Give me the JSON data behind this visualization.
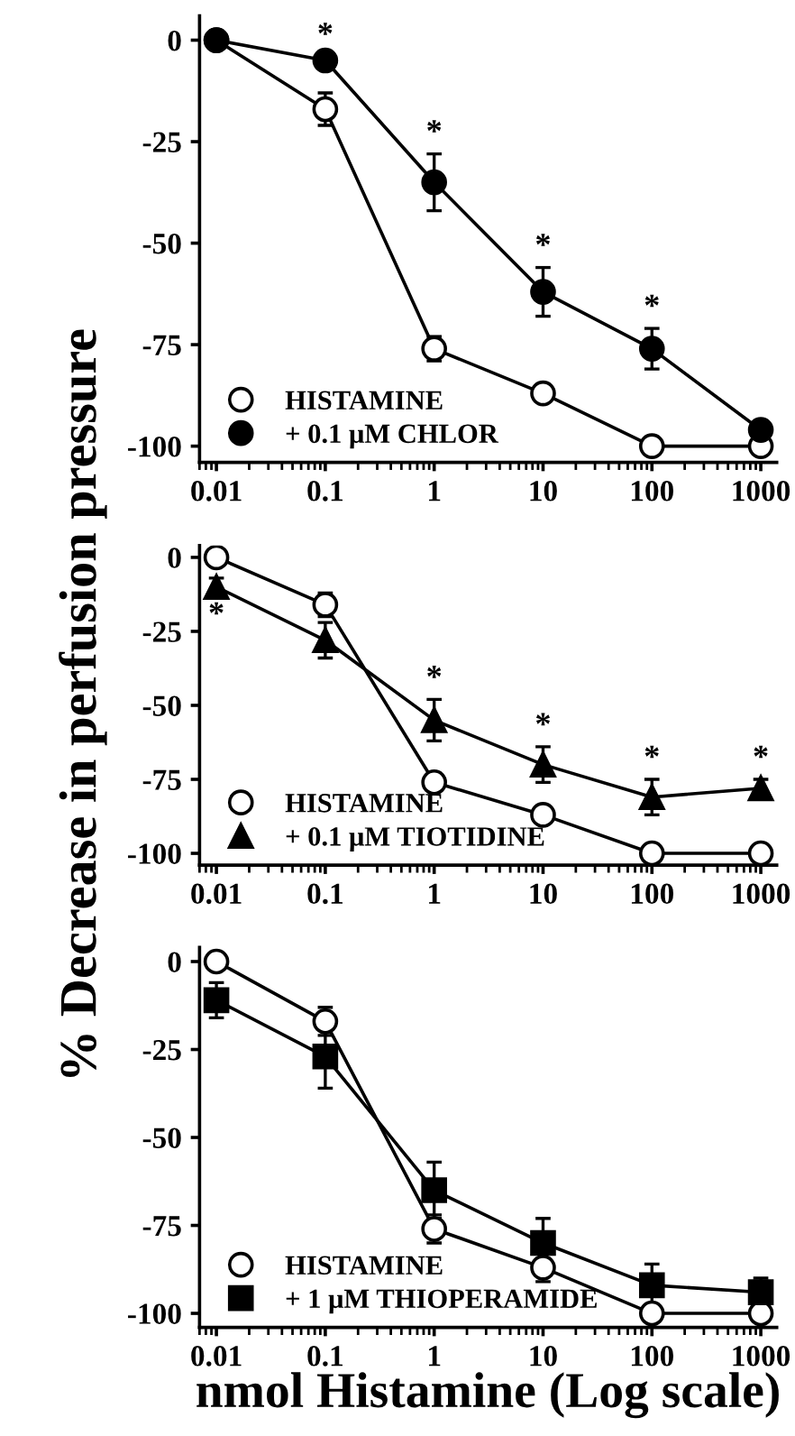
{
  "chart_data": [
    {
      "type": "line",
      "x": [
        0.01,
        0.1,
        1,
        10,
        100,
        1000
      ],
      "log": "x",
      "xlim": [
        0.007,
        1400
      ],
      "xticks": [
        0.01,
        0.1,
        1,
        10,
        100,
        1000
      ],
      "ylim": [
        -104,
        6
      ],
      "yticks": [
        0,
        -25,
        -50,
        -75,
        -100
      ],
      "grid": false,
      "legend": "bottom left",
      "line_style": "solid",
      "series": [
        {
          "name": "HISTAMINE",
          "color": "#ffffff",
          "marker": "circle",
          "values": [
            0,
            -17,
            -76,
            -87,
            -100,
            -100
          ],
          "errors": [
            null,
            4,
            3,
            null,
            null,
            null
          ]
        },
        {
          "name": "+ 0.1 μM CHLOR",
          "color": "#000000",
          "marker": "circle",
          "values": [
            0,
            -5,
            -35,
            -62,
            -76,
            -96
          ],
          "errors": [
            null,
            1,
            7,
            6,
            5,
            1
          ]
        }
      ],
      "annotations": [
        {
          "text": "*",
          "x": 0.1,
          "y": -4
        },
        {
          "text": "*",
          "x": 1,
          "y": -28
        },
        {
          "text": "*",
          "x": 10,
          "y": -56
        },
        {
          "text": "*",
          "x": 100,
          "y": -71
        }
      ]
    },
    {
      "type": "line",
      "x": [
        0.01,
        0.1,
        1,
        10,
        100,
        1000
      ],
      "log": "x",
      "xlim": [
        0.007,
        1400
      ],
      "xticks": [
        0.01,
        0.1,
        1,
        10,
        100,
        1000
      ],
      "ylim": [
        -104,
        4
      ],
      "yticks": [
        0,
        -25,
        -50,
        -75,
        -100
      ],
      "grid": false,
      "legend": "bottom left",
      "line_style": "solid",
      "ylabel": "% Decrease in perfusion pressure",
      "series": [
        {
          "name": "HISTAMINE",
          "color": "#ffffff",
          "marker": "circle",
          "values": [
            0,
            -16,
            -76,
            -87,
            -100,
            -100
          ],
          "errors": [
            null,
            4,
            3,
            null,
            null,
            null
          ]
        },
        {
          "name": "+ 0.1 μM TIOTIDINE",
          "color": "#000000",
          "marker": "triangle",
          "values": [
            -10,
            -28,
            -55,
            -70,
            -81,
            -78
          ],
          "errors": [
            3,
            6,
            7,
            6,
            6,
            3
          ]
        }
      ],
      "annotations": [
        {
          "text": "*",
          "x": 0.01,
          "y": -13
        },
        {
          "text": "*",
          "x": 1,
          "y": -48
        },
        {
          "text": "*",
          "x": 10,
          "y": -64
        },
        {
          "text": "*",
          "x": 100,
          "y": -75
        },
        {
          "text": "*",
          "x": 1000,
          "y": -75
        }
      ]
    },
    {
      "type": "line",
      "x": [
        0.01,
        0.1,
        1,
        10,
        100,
        1000
      ],
      "log": "x",
      "xlim": [
        0.007,
        1400
      ],
      "xticks": [
        0.01,
        0.1,
        1,
        10,
        100,
        1000
      ],
      "ylim": [
        -104,
        4
      ],
      "yticks": [
        0,
        -25,
        -50,
        -75,
        -100
      ],
      "grid": false,
      "legend": "bottom left",
      "line_style": "solid",
      "xlabel": "nmol Histamine (Log scale)",
      "series": [
        {
          "name": "HISTAMINE",
          "color": "#ffffff",
          "marker": "circle",
          "values": [
            0,
            -17,
            -76,
            -87,
            -100,
            -100
          ],
          "errors": [
            null,
            4,
            4,
            4,
            null,
            null
          ]
        },
        {
          "name": "+ 1 μM THIOPERAMIDE",
          "color": "#000000",
          "marker": "square",
          "values": [
            -11,
            -27,
            -65,
            -80,
            -92,
            -94
          ],
          "errors": [
            5,
            9,
            8,
            7,
            6,
            4
          ]
        }
      ]
    }
  ]
}
